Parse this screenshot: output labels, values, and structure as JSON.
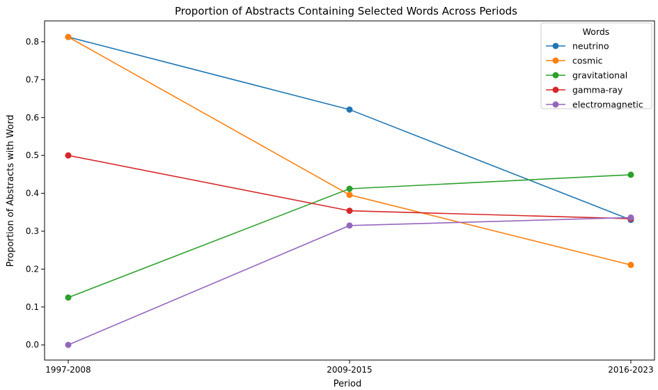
{
  "chart_data": {
    "type": "line",
    "title": "Proportion of Abstracts Containing Selected Words Across Periods",
    "xlabel": "Period",
    "ylabel": "Proportion of Abstracts with Word",
    "categories": [
      "1997-2008",
      "2009-2015",
      "2016-2023"
    ],
    "ylim": [
      -0.04,
      0.855
    ],
    "yticks": [
      0.0,
      0.1,
      0.2,
      0.3,
      0.4,
      0.5,
      0.6,
      0.7,
      0.8
    ],
    "ytick_labels": [
      "0.0",
      "0.1",
      "0.2",
      "0.3",
      "0.4",
      "0.5",
      "0.6",
      "0.7",
      "0.8"
    ],
    "grid": false,
    "legend": {
      "title": "Words",
      "placement": "top-right"
    },
    "series": [
      {
        "name": "neutrino",
        "color": "#1f77b4",
        "values": [
          0.8125,
          0.621,
          0.33
        ]
      },
      {
        "name": "cosmic",
        "color": "#ff7f0e",
        "values": [
          0.8125,
          0.396,
          0.211
        ]
      },
      {
        "name": "gravitational",
        "color": "#2ca02c",
        "values": [
          0.125,
          0.412,
          0.449
        ]
      },
      {
        "name": "gamma-ray",
        "color": "#d62728",
        "values": [
          0.5,
          0.354,
          0.333
        ]
      },
      {
        "name": "electromagnetic",
        "color": "#9467bd",
        "values": [
          0.0,
          0.315,
          0.336
        ]
      }
    ]
  }
}
